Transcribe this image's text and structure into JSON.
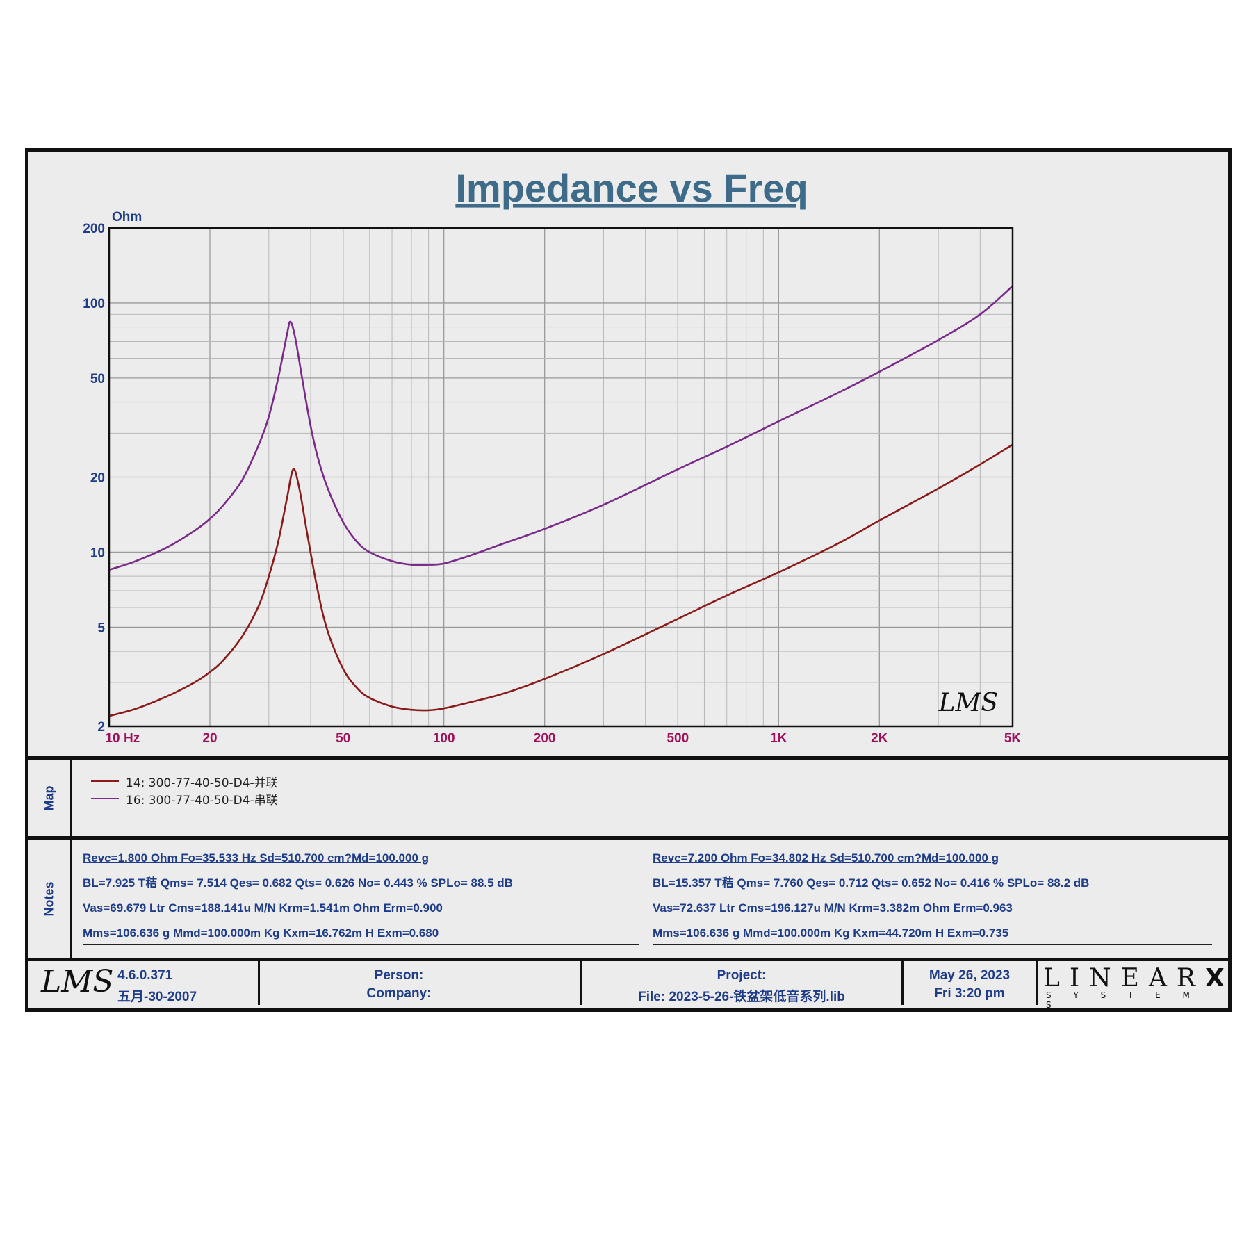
{
  "chart_data": {
    "type": "line",
    "title": "Impedance vs Freq",
    "ylabel": "Ohm",
    "xlabel": "Hz",
    "x_scale": "log",
    "y_scale": "log",
    "xlim": [
      10,
      5000
    ],
    "ylim": [
      2,
      200
    ],
    "x_ticks": [
      {
        "value": 10,
        "label": "10"
      },
      {
        "value": 20,
        "label": "20"
      },
      {
        "value": 50,
        "label": "50"
      },
      {
        "value": 100,
        "label": "100"
      },
      {
        "value": 200,
        "label": "200"
      },
      {
        "value": 500,
        "label": "500"
      },
      {
        "value": 1000,
        "label": "1K"
      },
      {
        "value": 2000,
        "label": "2K"
      },
      {
        "value": 5000,
        "label": "5K"
      }
    ],
    "y_ticks": [
      {
        "value": 2,
        "label": "2"
      },
      {
        "value": 5,
        "label": "5"
      },
      {
        "value": 10,
        "label": "10"
      },
      {
        "value": 20,
        "label": "20"
      },
      {
        "value": 50,
        "label": "50"
      },
      {
        "value": 100,
        "label": "100"
      },
      {
        "value": 200,
        "label": "200"
      }
    ],
    "grid": true,
    "watermark": "LMS",
    "series": [
      {
        "name": "14: 300-77-40-50-D4-并联",
        "color": "#8b1a1a",
        "x": [
          10,
          12,
          15,
          18,
          20,
          22,
          25,
          28,
          30,
          32,
          34,
          35.5,
          37,
          39,
          42,
          45,
          50,
          55,
          60,
          70,
          80,
          90,
          100,
          120,
          150,
          200,
          300,
          500,
          700,
          1000,
          1500,
          2000,
          3000,
          4000,
          5000
        ],
        "y": [
          2.2,
          2.35,
          2.65,
          3.0,
          3.3,
          3.7,
          4.6,
          6.1,
          8.0,
          11.0,
          16.5,
          21.5,
          18.0,
          12.0,
          7.0,
          4.8,
          3.4,
          2.85,
          2.6,
          2.4,
          2.33,
          2.32,
          2.36,
          2.5,
          2.7,
          3.1,
          3.9,
          5.4,
          6.7,
          8.3,
          10.8,
          13.4,
          18.0,
          22.5,
          27.0
        ]
      },
      {
        "name": "16: 300-77-40-50-D4-串联",
        "color": "#7a2a8a",
        "x": [
          10,
          12,
          15,
          18,
          20,
          22,
          25,
          28,
          30,
          32,
          34,
          34.8,
          36,
          38,
          40,
          42,
          45,
          50,
          55,
          60,
          70,
          80,
          90,
          100,
          120,
          150,
          200,
          300,
          500,
          700,
          1000,
          1500,
          2000,
          3000,
          4000,
          5000
        ],
        "y": [
          8.5,
          9.2,
          10.5,
          12.2,
          13.6,
          15.5,
          19.5,
          27.0,
          35.0,
          50.0,
          75.0,
          84.0,
          72.0,
          47.0,
          32.0,
          24.0,
          18.0,
          13.2,
          11.0,
          10.0,
          9.2,
          8.9,
          8.9,
          9.0,
          9.7,
          10.8,
          12.4,
          15.5,
          21.5,
          26.5,
          33.5,
          43.5,
          53.0,
          71.0,
          90.0,
          117.0
        ]
      }
    ]
  },
  "map": {
    "label": "Map",
    "items": [
      {
        "text": "14: 300-77-40-50-D4-并联",
        "color": "#8b1a1a"
      },
      {
        "text": "16: 300-77-40-50-D4-串联",
        "color": "#7a2a8a"
      }
    ]
  },
  "notes": {
    "label": "Notes",
    "left": [
      "Revc=1.800 Ohm  Fo=35.533 Hz  Sd=510.700 cm?Md=100.000 g",
      "BL=7.925 T秸  Qms= 7.514  Qes= 0.682  Qts= 0.626  No= 0.443 %  SPLo= 88.5 dB",
      "Vas=69.679 Ltr  Cms=188.141u M/N  Krm=1.541m Ohm  Erm=0.900",
      "Mms=106.636 g  Mmd=100.000m Kg  Kxm=16.762m H  Exm=0.680"
    ],
    "right": [
      "Revc=7.200 Ohm  Fo=34.802 Hz  Sd=510.700 cm?Md=100.000 g",
      "BL=15.357 T秸  Qms= 7.760  Qes= 0.712  Qts= 0.652  No= 0.416 %  SPLo= 88.2 dB",
      "Vas=72.637 Ltr  Cms=196.127u M/N  Krm=3.382m Ohm  Erm=0.963",
      "Mms=106.636 g  Mmd=100.000m Kg  Kxm=44.720m H  Exm=0.735"
    ]
  },
  "footer": {
    "logo": "LMS",
    "version": "4.6.0.371",
    "version_date": "五月-30-2007",
    "person": "Person:",
    "company": "Company:",
    "project": "Project:",
    "file": "File: 2023-5-26-铁盆架低音系列.lib",
    "date": "May 26, 2023",
    "time": "Fri  3:20 pm",
    "brand_top": "LINEAR",
    "brand_x": "X",
    "brand_bottom": "S Y S T E M S"
  }
}
